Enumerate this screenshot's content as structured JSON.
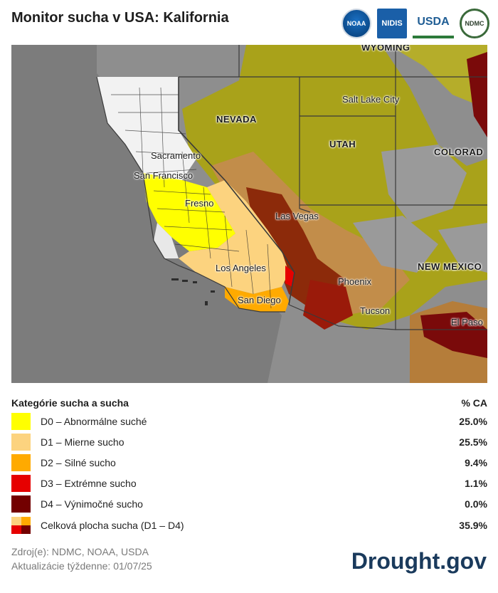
{
  "title": "Monitor sucha v USA: Kalifornia",
  "logos": {
    "noaa": "NOAA",
    "nidis": "NIDIS",
    "usda": "USDA",
    "ndmc": "NDMC"
  },
  "map": {
    "state_labels": {
      "nevada": "NEVADA",
      "utah": "UTAH",
      "wyoming": "WYOMING",
      "colorado": "COLORAD",
      "new_mexico": "NEW MEXICO"
    },
    "city_labels": {
      "salt_lake_city": "Salt Lake City",
      "sacramento": "Sacramento",
      "san_francisco": "San Francisco",
      "fresno": "Fresno",
      "las_vegas": "Las Vegas",
      "los_angeles": "Los Angeles",
      "san_diego": "San Diego",
      "phoenix": "Phoenix",
      "tucson": "Tucson",
      "el_paso": "El Paso"
    }
  },
  "legend": {
    "header_label": "Kategórie sucha a sucha",
    "header_value": "% CA",
    "rows": [
      {
        "label": "D0 – Abnormálne suché",
        "value": "25.0%",
        "color": "#ffff00"
      },
      {
        "label": "D1 – Mierne sucho",
        "value": "25.5%",
        "color": "#fcd37f"
      },
      {
        "label": "D2 – Silné sucho",
        "value": "9.4%",
        "color": "#ffaa00"
      },
      {
        "label": "D3 – Extrémne sucho",
        "value": "1.1%",
        "color": "#e60000"
      },
      {
        "label": "D4 – Výnimočné sucho",
        "value": "0.0%",
        "color": "#730000"
      }
    ],
    "total": {
      "label": "Celková plocha sucha (D1 – D4)",
      "value": "35.9%"
    }
  },
  "source_line": "Zdroj(e): NDMC, NOAA, USDA",
  "update_line": "Aktualizácie týždenne: 01/07/25",
  "brand": "Drought.gov"
}
